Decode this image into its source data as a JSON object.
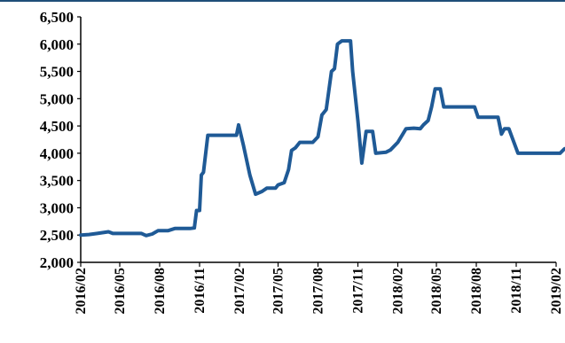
{
  "chart_data": {
    "type": "line",
    "title": "",
    "xlabel": "",
    "ylabel": "",
    "ylim": [
      2000,
      6500
    ],
    "xlim": [
      "2016/02",
      "2019/02"
    ],
    "grid": false,
    "legend": "none",
    "y_ticks": [
      "2,000",
      "2,500",
      "3,000",
      "3,500",
      "4,000",
      "4,500",
      "5,000",
      "5,500",
      "6,000",
      "6,500"
    ],
    "x_ticks": [
      "2016/02",
      "2016/05",
      "2016/08",
      "2016/11",
      "2017/02",
      "2017/05",
      "2017/08",
      "2017/11",
      "2018/02",
      "2018/05",
      "2018/08",
      "2018/11",
      "2019/02"
    ],
    "series": [
      {
        "color": "#1f5a96",
        "points": [
          [
            "2016/02/01",
            2500
          ],
          [
            "2016/02/20",
            2510
          ],
          [
            "2016/03/10",
            2530
          ],
          [
            "2016/04/05",
            2560
          ],
          [
            "2016/04/15",
            2530
          ],
          [
            "2016/05/15",
            2530
          ],
          [
            "2016/06/20",
            2530
          ],
          [
            "2016/07/01",
            2490
          ],
          [
            "2016/07/15",
            2520
          ],
          [
            "2016/07/28",
            2580
          ],
          [
            "2016/08/20",
            2580
          ],
          [
            "2016/09/05",
            2620
          ],
          [
            "2016/09/25",
            2620
          ],
          [
            "2016/10/10",
            2620
          ],
          [
            "2016/10/20",
            2630
          ],
          [
            "2016/10/25",
            2950
          ],
          [
            "2016/11/01",
            2950
          ],
          [
            "2016/11/05",
            3600
          ],
          [
            "2016/11/10",
            3650
          ],
          [
            "2016/11/20",
            4330
          ],
          [
            "2016/12/15",
            4330
          ],
          [
            "2017/01/10",
            4330
          ],
          [
            "2017/01/25",
            4330
          ],
          [
            "2017/01/30",
            4520
          ],
          [
            "2017/02/10",
            4150
          ],
          [
            "2017/02/25",
            3600
          ],
          [
            "2017/03/10",
            3250
          ],
          [
            "2017/03/25",
            3300
          ],
          [
            "2017/04/05",
            3360
          ],
          [
            "2017/04/25",
            3360
          ],
          [
            "2017/05/01",
            3420
          ],
          [
            "2017/05/15",
            3460
          ],
          [
            "2017/05/25",
            3700
          ],
          [
            "2017/06/01",
            4050
          ],
          [
            "2017/06/10",
            4100
          ],
          [
            "2017/06/20",
            4200
          ],
          [
            "2017/07/20",
            4200
          ],
          [
            "2017/08/01",
            4300
          ],
          [
            "2017/08/10",
            4700
          ],
          [
            "2017/08/20",
            4800
          ],
          [
            "2017/09/01",
            5500
          ],
          [
            "2017/09/08",
            5550
          ],
          [
            "2017/09/15",
            6000
          ],
          [
            "2017/09/25",
            6060
          ],
          [
            "2017/10/15",
            6060
          ],
          [
            "2017/10/20",
            5500
          ],
          [
            "2017/11/01",
            4600
          ],
          [
            "2017/11/10",
            3820
          ],
          [
            "2017/11/20",
            4400
          ],
          [
            "2017/12/05",
            4400
          ],
          [
            "2017/12/12",
            4000
          ],
          [
            "2018/01/05",
            4020
          ],
          [
            "2018/01/15",
            4060
          ],
          [
            "2018/02/01",
            4200
          ],
          [
            "2018/02/20",
            4450
          ],
          [
            "2018/03/10",
            4460
          ],
          [
            "2018/03/25",
            4450
          ],
          [
            "2018/04/01",
            4520
          ],
          [
            "2018/04/12",
            4600
          ],
          [
            "2018/04/20",
            4850
          ],
          [
            "2018/04/28",
            5180
          ],
          [
            "2018/05/10",
            5180
          ],
          [
            "2018/05/18",
            4850
          ],
          [
            "2018/06/15",
            4850
          ],
          [
            "2018/07/15",
            4850
          ],
          [
            "2018/07/28",
            4850
          ],
          [
            "2018/08/05",
            4660
          ],
          [
            "2018/09/10",
            4660
          ],
          [
            "2018/09/20",
            4660
          ],
          [
            "2018/09/28",
            4350
          ],
          [
            "2018/10/05",
            4450
          ],
          [
            "2018/10/15",
            4450
          ],
          [
            "2018/11/05",
            4000
          ],
          [
            "2018/12/15",
            4000
          ],
          [
            "2019/01/25",
            4000
          ],
          [
            "2019/02/10",
            4000
          ],
          [
            "2019/02/20",
            4080
          ],
          [
            "2019/02/28",
            4100
          ]
        ]
      }
    ]
  }
}
